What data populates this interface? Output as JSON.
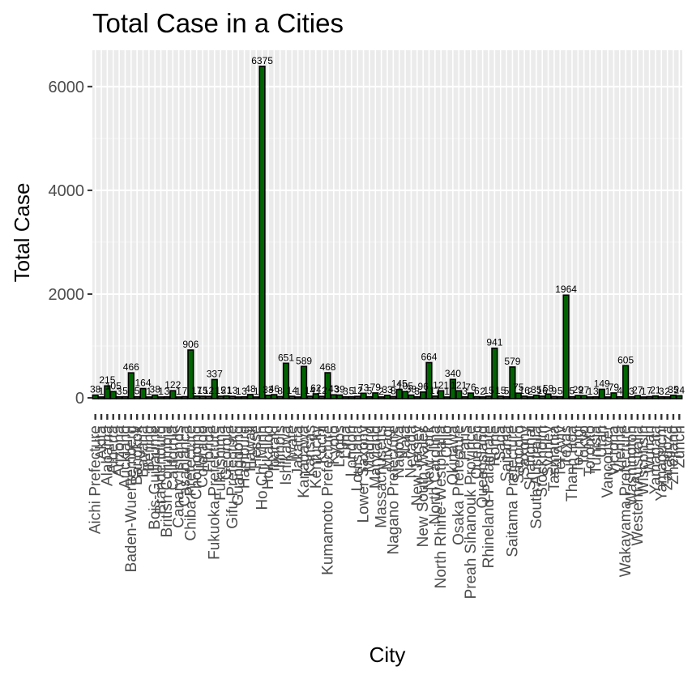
{
  "chart_data": {
    "type": "bar",
    "title": "Total Case in a Cities",
    "xlabel": "City",
    "ylabel": "Total Case",
    "ylim": [
      0,
      6700
    ],
    "yticks": [
      0,
      2000,
      4000,
      6000
    ],
    "grid": true,
    "bar_fill": "#006400",
    "bar_outline": "#000000",
    "panel_background": "#ebebeb",
    "categories": [
      "Aichi Prefecture",
      "Akita",
      "Alabama",
      "Alberta",
      "Arizona",
      "Auckland",
      "Baden-Wuerttemberg",
      "Bangkok",
      "Bavaria",
      "Beijing",
      "Bois-Guillaume",
      "Brandenburg",
      "British Columbia",
      "California",
      "Canary Islands",
      "Casablanca",
      "Chiba Prefecture",
      "Chongqing",
      "Colorado",
      "Florida",
      "Fukuoka Prefecture",
      "Fukushima",
      "Georgia",
      "Gifu Prefecture",
      "Guangdong",
      "Hamburg",
      "Hawaii",
      "Hesse",
      "Ho Chi Minh",
      "Hokkaido",
      "Ibaraki",
      "Illinois",
      "Ishikawa",
      "Iwate",
      "Jakarta",
      "Kanagawa",
      "Kansas",
      "Kentucky",
      "Kochi",
      "Kumamoto Prefecture",
      "Kyoto",
      "Lagos",
      "Lima",
      "London",
      "Louisiana",
      "Lower Saxony",
      "Madrid",
      "Maryland",
      "Massachusetts",
      "Miyagi",
      "Nagano Prefecture",
      "Nagoya",
      "Nara",
      "Nevada",
      "New Jersey",
      "New South Wales",
      "New York",
      "North Carolina",
      "North Rhine-Westphalia",
      "Ohio",
      "Okinawa",
      "Osaka Prefecture",
      "Paris",
      "Preah Sihanouk Province",
      "Quebec",
      "Queensland",
      "Rhineland-Palatinate",
      "Rome",
      "Saga",
      "Saitama",
      "Saitama Prefecture",
      "Sapporo",
      "Saxony",
      "Shanghai",
      "South Australia",
      "Stockholm",
      "Sydney",
      "Tasmania",
      "Tel Aviv",
      "Texas",
      "Thanh Hoa",
      "Tochigi",
      "Tokyo",
      "Toronto",
      "Tunisia",
      "Utah",
      "Vancouver",
      "Victoria",
      "Vienna",
      "Wakayama Prefecture",
      "Washington",
      "Western Australia",
      "Wisconsin",
      "Wuhan",
      "Yamagata",
      "Yamaguchi",
      "Zaragoza",
      "Zhejiang",
      "Zurich"
    ],
    "values": [
      38,
      1,
      215,
      105,
      3,
      5,
      466,
      5,
      164,
      1,
      38,
      1,
      3,
      122,
      1,
      7,
      906,
      17,
      15,
      12,
      337,
      15,
      21,
      13,
      1,
      3,
      48,
      1,
      6375,
      33,
      46,
      8,
      651,
      14,
      1,
      589,
      14,
      62,
      12,
      468,
      43,
      39,
      3,
      5,
      12,
      73,
      5,
      79,
      2,
      33,
      8,
      145,
      105,
      38,
      3,
      96,
      664,
      17,
      121,
      1,
      340,
      121,
      3,
      76,
      6,
      2,
      15,
      941,
      15,
      5,
      579,
      75,
      16,
      2,
      35,
      16,
      58,
      9,
      5,
      1964,
      5,
      29,
      27,
      1,
      3,
      149,
      1,
      79,
      4,
      605,
      3,
      27,
      1,
      7,
      21,
      3,
      2,
      35,
      24
    ],
    "data_labels": [
      "38",
      "1",
      "215",
      "105",
      "3",
      "5",
      "466",
      "5",
      "164",
      "1",
      "38",
      "1",
      "3",
      "122",
      "1",
      "7",
      "906",
      "17",
      "15",
      "12",
      "337",
      "15",
      "21",
      "13",
      "1",
      "3",
      "48",
      "1",
      "6375",
      "33",
      "46",
      "8",
      "651",
      "14",
      "1",
      "589",
      "14",
      "62",
      "12",
      "468",
      "43",
      "39",
      "3",
      "5",
      "12",
      "73",
      "5",
      "79",
      "2",
      "33",
      "8",
      "145",
      "105",
      "38",
      "3",
      "96",
      "664",
      "17",
      "121",
      "1",
      "340",
      "121",
      "3",
      "76",
      "6",
      "2",
      "15",
      "941",
      "15",
      "5",
      "579",
      "75",
      "16",
      "2",
      "35",
      "16",
      "58",
      "9",
      "5",
      "1964",
      "5",
      "29",
      "27",
      "1",
      "3",
      "149",
      "1",
      "79",
      "4",
      "605",
      "3",
      "27",
      "1",
      "7",
      "21",
      "3",
      "2",
      "35",
      "24"
    ],
    "x_tick_labels_shown": [
      "Aichi Prefecture",
      "Akita",
      "Alabama",
      "Alberta",
      "Arizona",
      "Auckland",
      "Baden-Wuerttemberg",
      "Bangkok",
      "Bavaria",
      "Beijing",
      "Bois-Guillaume",
      "Brandenburg",
      "British Columbia",
      "California",
      "Canary Islands",
      "Casablanca",
      "Chiba Prefecture",
      "Chongqing",
      "Colorado",
      "Florida",
      "Fukuoka Prefecture",
      "Fukushima",
      "Georgia",
      "Gifu Prefecture",
      "Guangdong",
      "Hamburg",
      "Hawaii",
      "Hesse",
      "Ho Chi Minh",
      "Hokkaido",
      "Ibaraki",
      "Illinois",
      "Ishikawa",
      "Iwate",
      "Jakarta",
      "Kanagawa",
      "Kansas",
      "Kentucky",
      "Kochi",
      "Kumamoto Prefecture",
      "Kyoto",
      "Lagos",
      "Lima",
      "London",
      "Louisiana",
      "Lower Saxony",
      "Madrid",
      "Maryland",
      "Massachusetts",
      "Miyagi",
      "Nagano Prefecture",
      "Nagoya",
      "Nara",
      "Nevada",
      "New Jersey",
      "New South Wales",
      "New York",
      "North Carolina",
      "North Rhine-Westphalia",
      "Ohio",
      "Okinawa",
      "Osaka Prefecture",
      "Paris",
      "Preah Sihanouk Province",
      "Quebec",
      "Queensland",
      "Rhineland-Palatinate",
      "Rome",
      "Saga",
      "Saitama",
      "Saitama Prefecture",
      "Sapporo",
      "Saxony",
      "Shanghai",
      "South Australia",
      "Stockholm",
      "Sydney",
      "Tasmania",
      "Tel Aviv",
      "Texas",
      "Thanh Hoa",
      "Tochigi",
      "Tokyo",
      "Toronto",
      "Tunisia",
      "Utah",
      "Vancouver",
      "Victoria",
      "Vienna",
      "Wakayama Prefecture",
      "Washington",
      "Western Australia",
      "Wisconsin",
      "Wuhan",
      "Yamagata",
      "Yamaguchi",
      "Zaragoza",
      "Zhejiang",
      "Zurich"
    ]
  }
}
